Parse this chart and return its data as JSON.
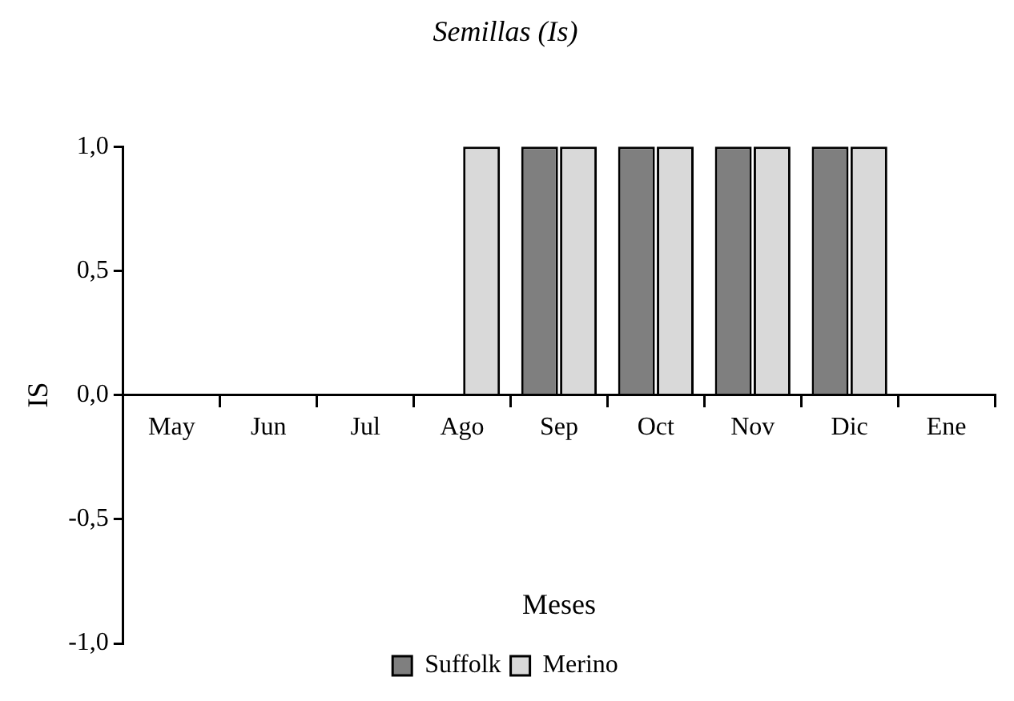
{
  "chart_data": {
    "type": "bar",
    "title": "Semillas (Is)",
    "xlabel": "Meses",
    "ylabel": "IS",
    "categories": [
      "May",
      "Jun",
      "Jul",
      "Ago",
      "Sep",
      "Oct",
      "Nov",
      "Dic",
      "Ene"
    ],
    "series": [
      {
        "name": "Suffolk",
        "color": "#7f7f7f",
        "values": [
          0,
          0,
          0,
          0,
          1,
          1,
          1,
          1,
          0
        ]
      },
      {
        "name": "Merino",
        "color": "#d9d9d9",
        "values": [
          0,
          0,
          0,
          1,
          1,
          1,
          1,
          1,
          0
        ]
      }
    ],
    "ylim": [
      -1,
      1
    ],
    "yticks": [
      {
        "value": -1,
        "label": "-1,0"
      },
      {
        "value": -0.5,
        "label": "-0,5"
      },
      {
        "value": 0,
        "label": "0,0"
      },
      {
        "value": 0.5,
        "label": "0,5"
      },
      {
        "value": 1,
        "label": "1,0"
      }
    ],
    "grid": false,
    "legend": "bottom"
  }
}
